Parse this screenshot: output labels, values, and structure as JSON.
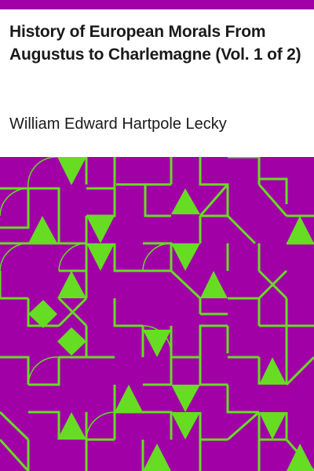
{
  "book": {
    "title": "History of European Morals From Augustus to Charlemagne (Vol. 1 of 2)",
    "author": "William Edward Hartpole Lecky"
  },
  "colors": {
    "band": "#a000a6",
    "pattern_fill": "#a000a6",
    "pattern_line": "#66dd22",
    "background": "#ffffff",
    "text": "#1a1a1a"
  }
}
